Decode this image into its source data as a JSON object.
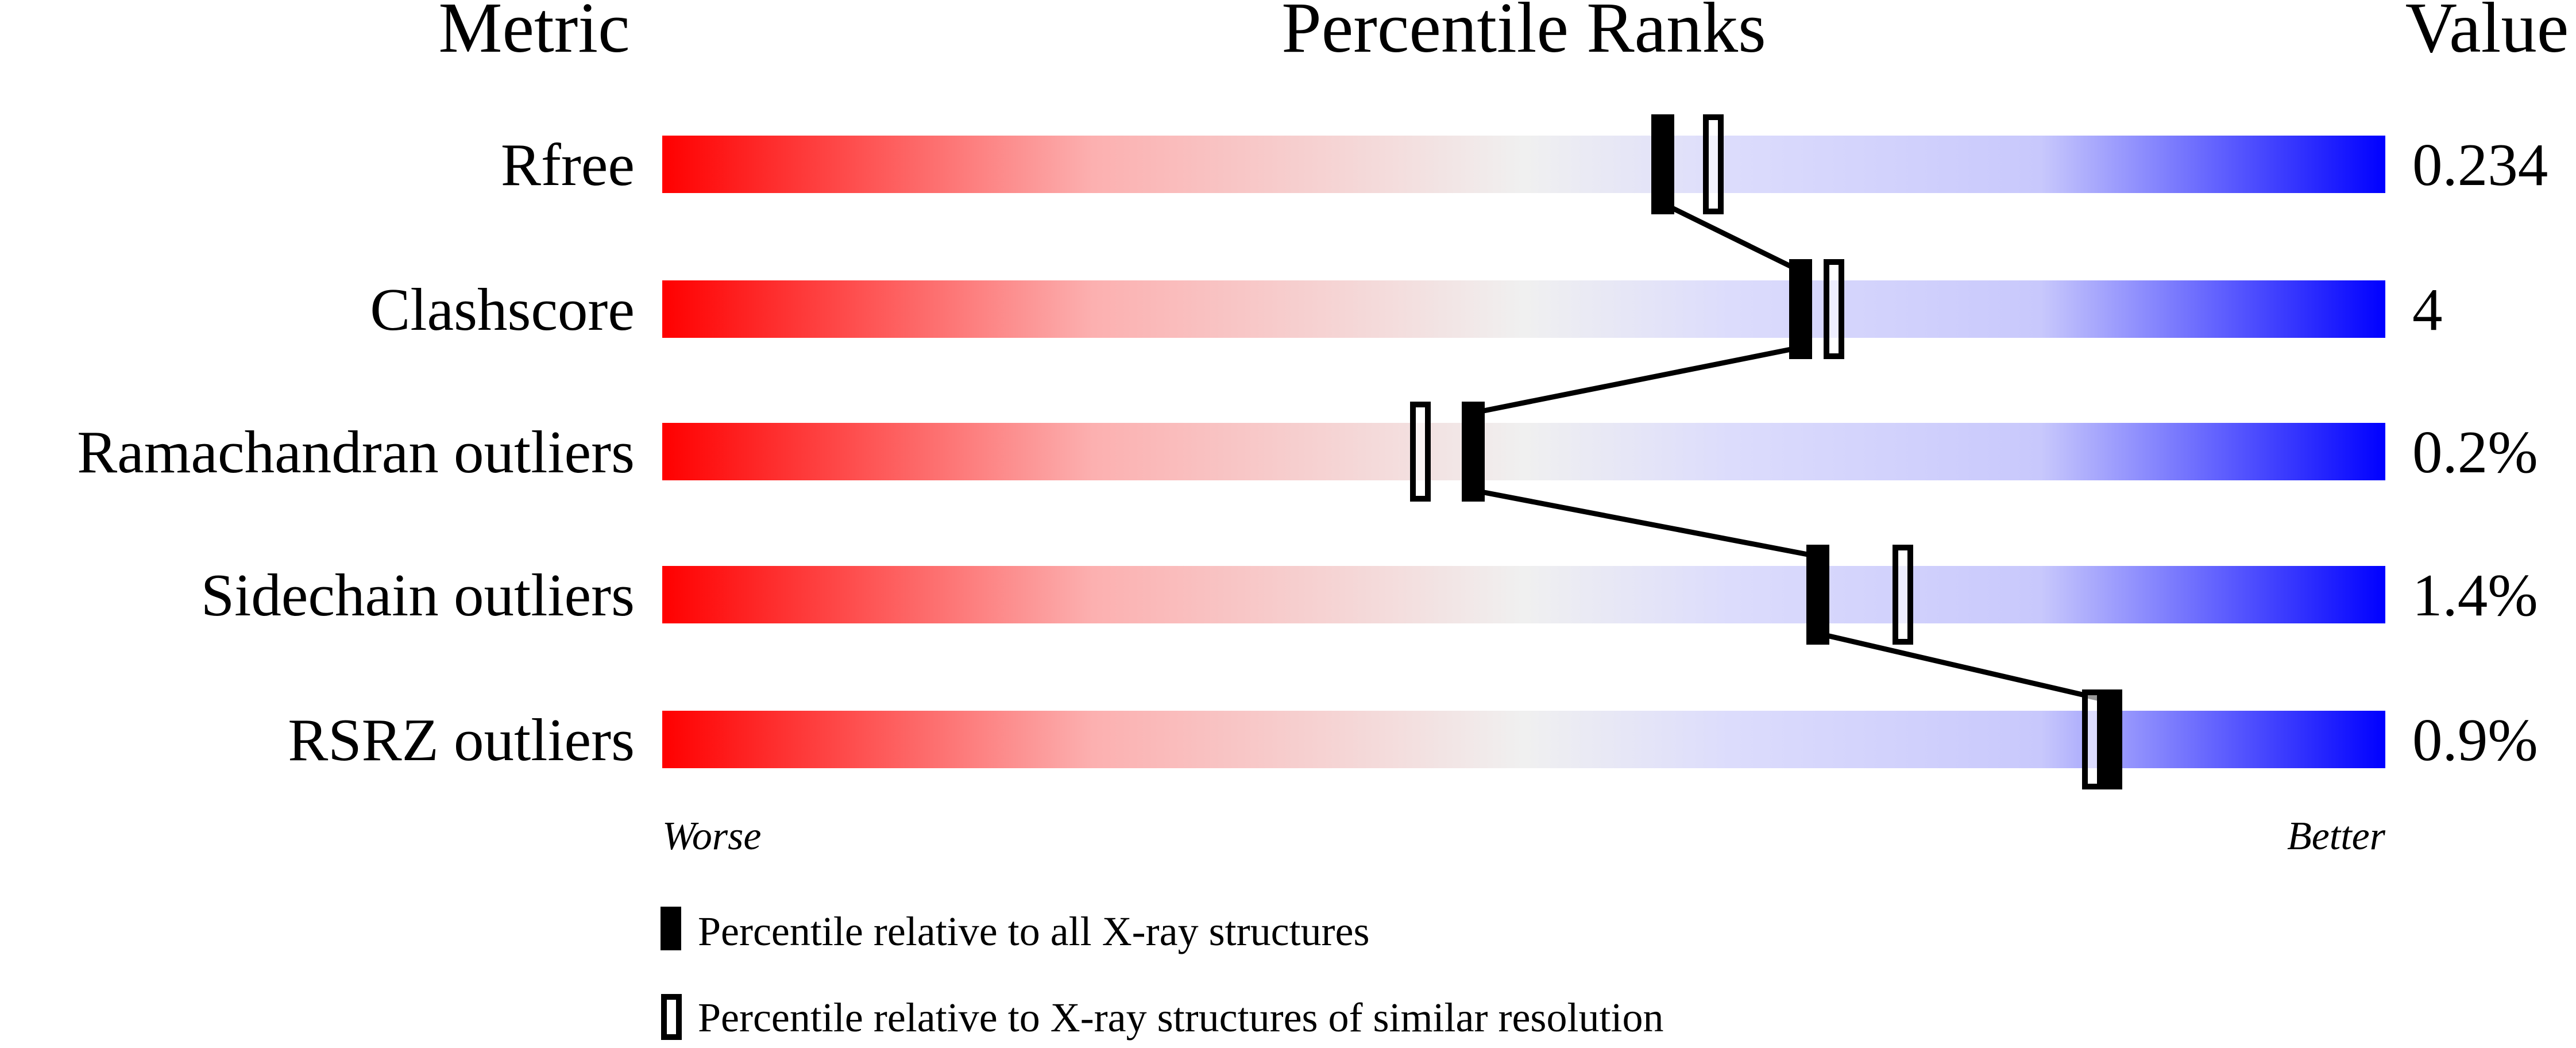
{
  "chart_data": {
    "type": "percentile-slider",
    "headers": {
      "metric": "Metric",
      "ranks": "Percentile Ranks",
      "value": "Value"
    },
    "xlim": [
      0,
      100
    ],
    "axis_labels": {
      "left": "Worse",
      "right": "Better"
    },
    "metrics": [
      {
        "name": "Rfree",
        "value": "0.234",
        "percentile_all": 58,
        "percentile_similar": 61
      },
      {
        "name": "Clashscore",
        "value": "4",
        "percentile_all": 66,
        "percentile_similar": 68
      },
      {
        "name": "Ramachandran outliers",
        "value": "0.2%",
        "percentile_all": 47,
        "percentile_similar": 44
      },
      {
        "name": "Sidechain outliers",
        "value": "1.4%",
        "percentile_all": 67,
        "percentile_similar": 72
      },
      {
        "name": "RSRZ outliers",
        "value": "0.9%",
        "percentile_all": 84,
        "percentile_similar": 83
      }
    ],
    "legend": [
      {
        "marker": "filled",
        "label": "Percentile relative to all X-ray structures"
      },
      {
        "marker": "open",
        "label": "Percentile relative to X-ray structures of similar resolution"
      }
    ],
    "colors": {
      "worse": "#ff0000",
      "neutral": "#f0f0f0",
      "mid_better": "#dcdcfc",
      "better": "#0000ff"
    }
  }
}
